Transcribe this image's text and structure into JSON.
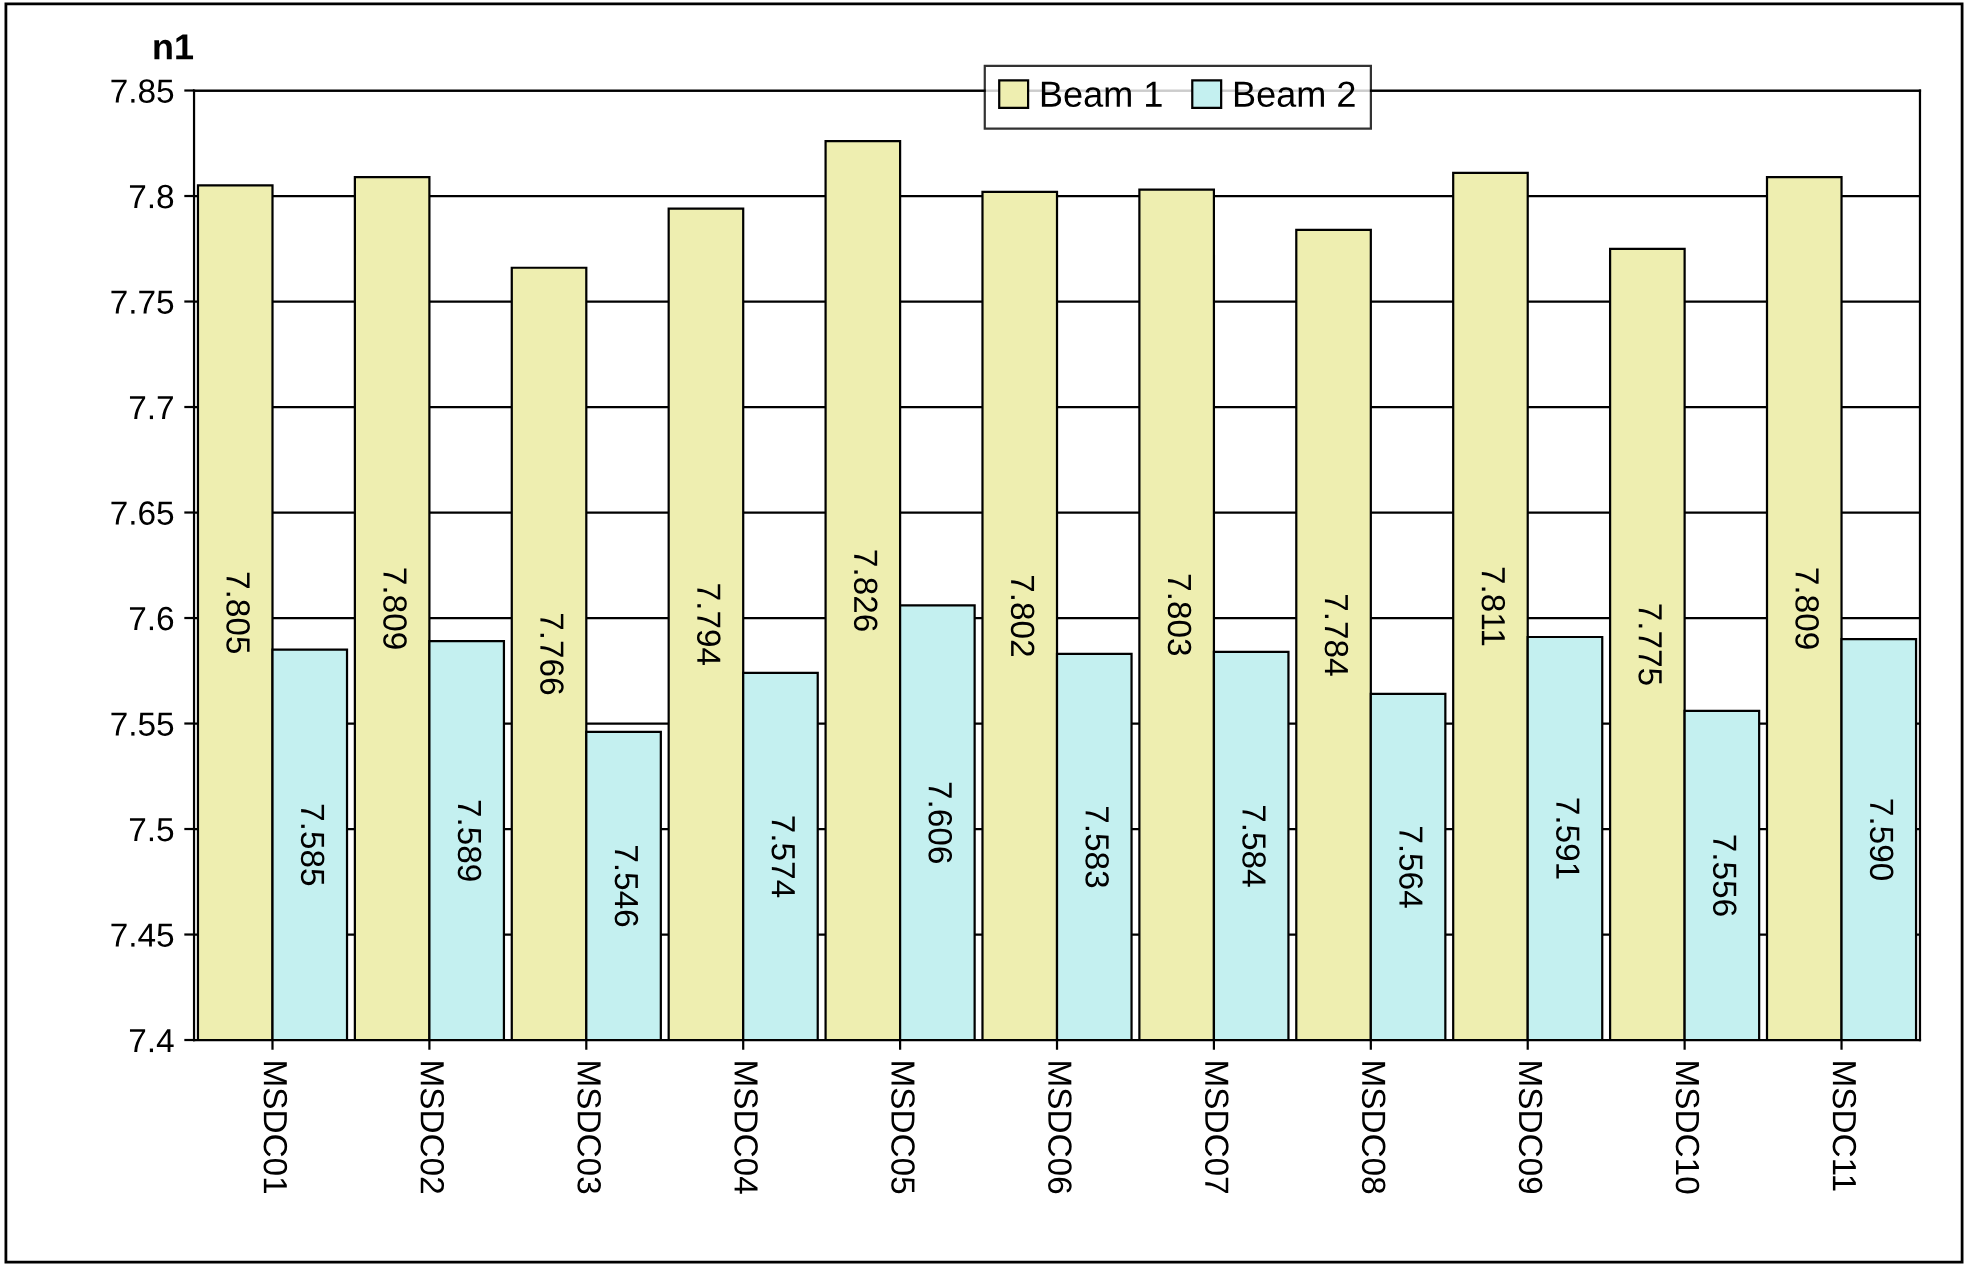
{
  "chart_data": {
    "type": "bar",
    "ylabel": "n1",
    "categories": [
      "MSDC01",
      "MSDC02",
      "MSDC03",
      "MSDC04",
      "MSDC05",
      "MSDC06",
      "MSDC07",
      "MSDC08",
      "MSDC09",
      "MSDC10",
      "MSDC11"
    ],
    "series": [
      {
        "name": "Beam 1",
        "color": "#eeeeb0",
        "values": [
          7.805,
          7.809,
          7.766,
          7.794,
          7.826,
          7.802,
          7.803,
          7.784,
          7.811,
          7.775,
          7.809
        ],
        "value_labels": [
          "7.805",
          "7.809",
          "7.766",
          "7.794",
          "7.826",
          "7.802",
          "7.803",
          "7.784",
          "7.811",
          "7.775",
          "7.809"
        ]
      },
      {
        "name": "Beam 2",
        "color": "#c4f0f0",
        "values": [
          7.585,
          7.589,
          7.546,
          7.574,
          7.606,
          7.583,
          7.584,
          7.564,
          7.591,
          7.556,
          7.59
        ],
        "value_labels": [
          "7.585",
          "7.589",
          "7.546",
          "7.574",
          "7.606",
          "7.583",
          "7.584",
          "7.564",
          "7.591",
          "7.556",
          "7.590"
        ]
      }
    ],
    "ylim": [
      7.4,
      7.85
    ],
    "yticks": [
      7.4,
      7.45,
      7.5,
      7.55,
      7.6,
      7.65,
      7.7,
      7.75,
      7.8,
      7.85
    ],
    "grid": "y",
    "legend": "top"
  }
}
